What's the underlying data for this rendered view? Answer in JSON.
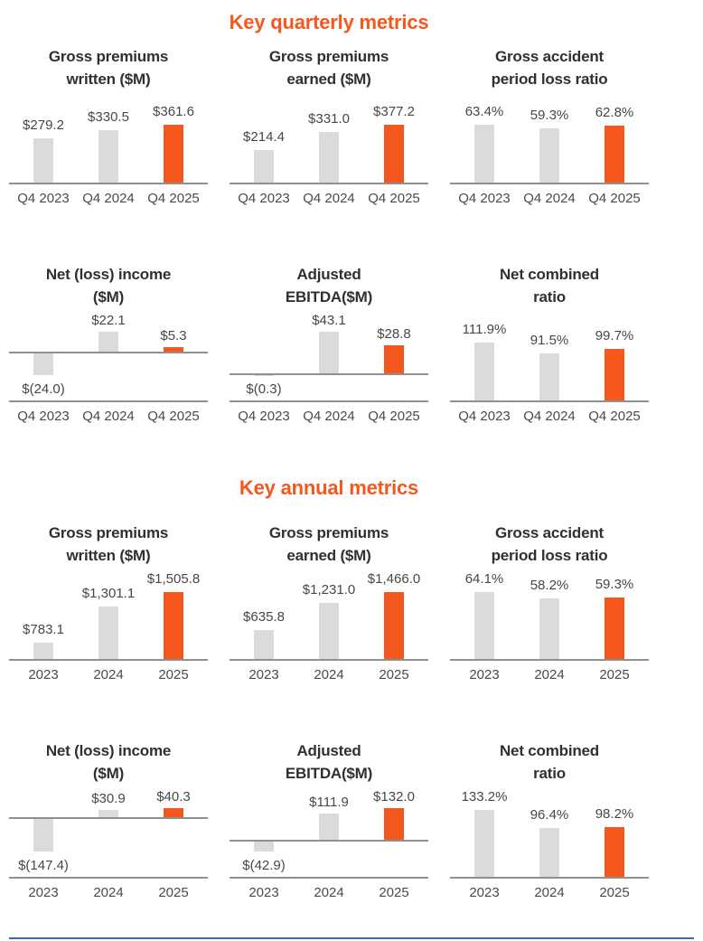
{
  "theme": {
    "accent_orange": "#F5571D",
    "bar_gray": "#DBDBDB",
    "axis_gray": "#909090",
    "footer_blue": "#3A6FAE"
  },
  "sections": [
    {
      "title": "Key quarterly metrics",
      "chart_indexes": [
        0,
        1,
        2,
        3,
        4,
        5
      ]
    },
    {
      "title": "Key annual metrics",
      "chart_indexes": [
        6,
        7,
        8,
        9,
        10,
        11
      ]
    }
  ],
  "chart_data": [
    {
      "type": "bar",
      "title": "Gross premiums written ($M)",
      "title_lines": [
        "Gross premiums",
        "written ($M)"
      ],
      "categories": [
        "Q4 2023",
        "Q4 2024",
        "Q4 2025"
      ],
      "values": [
        279.2,
        330.5,
        361.6
      ],
      "value_labels": [
        "$279.2",
        "$330.5",
        "$361.6"
      ],
      "highlight_index": 2,
      "ymin": 0
    },
    {
      "type": "bar",
      "title": "Gross premiums earned ($M)",
      "title_lines": [
        "Gross premiums",
        "earned ($M)"
      ],
      "categories": [
        "Q4 2023",
        "Q4 2024",
        "Q4 2025"
      ],
      "values": [
        214.4,
        331.0,
        377.2
      ],
      "value_labels": [
        "$214.4",
        "$331.0",
        "$377.2"
      ],
      "highlight_index": 2,
      "ymin": 0
    },
    {
      "type": "bar",
      "title": "Gross accident period loss ratio",
      "title_lines": [
        "Gross accident",
        "period loss ratio"
      ],
      "categories": [
        "Q4 2023",
        "Q4 2024",
        "Q4 2025"
      ],
      "values": [
        63.4,
        59.3,
        62.8
      ],
      "value_labels": [
        "63.4%",
        "59.3%",
        "62.8%"
      ],
      "highlight_index": 2,
      "ymin": 0
    },
    {
      "type": "bar",
      "title": "Net (loss) income ($M)",
      "title_lines": [
        "Net (loss) income",
        "($M)"
      ],
      "categories": [
        "Q4 2023",
        "Q4 2024",
        "Q4 2025"
      ],
      "values": [
        -24.0,
        22.1,
        5.3
      ],
      "value_labels": [
        "$(24.0)",
        "$22.1",
        "$5.3"
      ],
      "highlight_index": 2,
      "ymin": 0
    },
    {
      "type": "bar",
      "title": "Adjusted EBITDA($M)",
      "title_lines": [
        "Adjusted",
        "EBITDA($M)"
      ],
      "categories": [
        "Q4 2023",
        "Q4 2024",
        "Q4 2025"
      ],
      "values": [
        -0.3,
        43.1,
        28.8
      ],
      "value_labels": [
        "$(0.3)",
        "$43.1",
        "$28.8"
      ],
      "highlight_index": 2,
      "ymin": 0
    },
    {
      "type": "bar",
      "title": "Net combined ratio",
      "title_lines": [
        "Net combined",
        "ratio"
      ],
      "categories": [
        "Q4 2023",
        "Q4 2024",
        "Q4 2025"
      ],
      "values": [
        111.9,
        91.5,
        99.7
      ],
      "value_labels": [
        "111.9%",
        "91.5%",
        "99.7%"
      ],
      "highlight_index": 2,
      "ymin": 0
    },
    {
      "type": "bar",
      "title": "Gross premiums written ($M)",
      "title_lines": [
        "Gross premiums",
        "written ($M)"
      ],
      "categories": [
        "2023",
        "2024",
        "2025"
      ],
      "values": [
        783.1,
        1301.1,
        1505.8
      ],
      "value_labels": [
        "$783.1",
        "$1,301.1",
        "$1,505.8"
      ],
      "highlight_index": 2,
      "ymin": 550
    },
    {
      "type": "bar",
      "title": "Gross premiums earned ($M)",
      "title_lines": [
        "Gross premiums",
        "earned ($M)"
      ],
      "categories": [
        "2023",
        "2024",
        "2025"
      ],
      "values": [
        635.8,
        1231.0,
        1466.0
      ],
      "value_labels": [
        "$635.8",
        "$1,231.0",
        "$1,466.0"
      ],
      "highlight_index": 2,
      "ymin": 0
    },
    {
      "type": "bar",
      "title": "Gross accident period loss ratio",
      "title_lines": [
        "Gross accident",
        "period loss ratio"
      ],
      "categories": [
        "2023",
        "2024",
        "2025"
      ],
      "values": [
        64.1,
        58.2,
        59.3
      ],
      "value_labels": [
        "64.1%",
        "58.2%",
        "59.3%"
      ],
      "highlight_index": 2,
      "ymin": 0
    },
    {
      "type": "bar",
      "title": "Net (loss) income ($M)",
      "title_lines": [
        "Net (loss) income",
        "($M)"
      ],
      "categories": [
        "2023",
        "2024",
        "2025"
      ],
      "values": [
        -147.4,
        30.9,
        40.3
      ],
      "value_labels": [
        "$(147.4)",
        "$30.9",
        "$40.3"
      ],
      "highlight_index": 2,
      "ymin": 0
    },
    {
      "type": "bar",
      "title": "Adjusted EBITDA($M)",
      "title_lines": [
        "Adjusted",
        "EBITDA($M)"
      ],
      "categories": [
        "2023",
        "2024",
        "2025"
      ],
      "values": [
        -42.9,
        111.9,
        132.0
      ],
      "value_labels": [
        "$(42.9)",
        "$111.9",
        "$132.0"
      ],
      "highlight_index": 2,
      "ymin": 0
    },
    {
      "type": "bar",
      "title": "Net combined ratio",
      "title_lines": [
        "Net combined",
        "ratio"
      ],
      "categories": [
        "2023",
        "2024",
        "2025"
      ],
      "values": [
        133.2,
        96.4,
        98.2
      ],
      "value_labels": [
        "133.2%",
        "96.4%",
        "98.2%"
      ],
      "highlight_index": 2,
      "ymin": 0
    }
  ]
}
